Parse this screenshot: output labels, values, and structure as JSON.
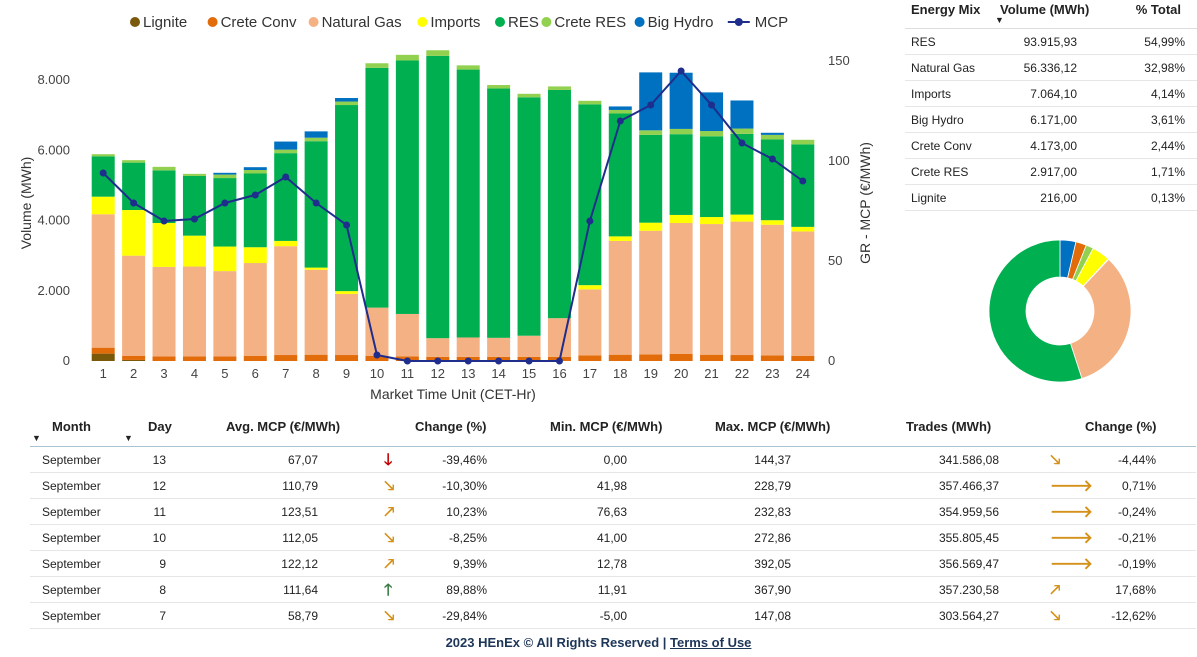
{
  "chart_data": {
    "type": "bar",
    "stacked": true,
    "categories": [
      "1",
      "2",
      "3",
      "4",
      "5",
      "6",
      "7",
      "8",
      "9",
      "10",
      "11",
      "12",
      "13",
      "14",
      "15",
      "16",
      "17",
      "18",
      "19",
      "20",
      "21",
      "22",
      "23",
      "24"
    ],
    "series": [
      {
        "name": "Lignite",
        "color": "#7a5a0a",
        "values": [
          210,
          30,
          0,
          0,
          0,
          0,
          0,
          0,
          0,
          0,
          0,
          0,
          0,
          0,
          0,
          0,
          0,
          0,
          0,
          0,
          0,
          0,
          0,
          0
        ]
      },
      {
        "name": "Crete Conv",
        "color": "#e36c0a",
        "values": [
          170,
          120,
          130,
          130,
          130,
          150,
          170,
          180,
          170,
          150,
          130,
          120,
          120,
          120,
          120,
          120,
          160,
          180,
          190,
          200,
          180,
          170,
          160,
          150
        ]
      },
      {
        "name": "Natural Gas",
        "color": "#f4b183",
        "values": [
          3800,
          2850,
          2550,
          2560,
          2430,
          2640,
          3100,
          2420,
          1740,
          1370,
          1210,
          530,
          550,
          540,
          600,
          1100,
          1880,
          3240,
          3520,
          3730,
          3720,
          3800,
          3720,
          3540
        ]
      },
      {
        "name": "Imports",
        "color": "#ffff00",
        "values": [
          500,
          1300,
          1250,
          880,
          700,
          450,
          150,
          60,
          80,
          0,
          0,
          0,
          0,
          0,
          0,
          0,
          120,
          130,
          230,
          230,
          200,
          200,
          130,
          130
        ]
      },
      {
        "name": "RES",
        "color": "#00b050",
        "values": [
          1150,
          1350,
          1500,
          1700,
          1950,
          2100,
          2500,
          3600,
          5300,
          6830,
          7220,
          8040,
          7630,
          7100,
          6790,
          6500,
          5150,
          3500,
          2500,
          2300,
          2300,
          2300,
          2300,
          2350
        ]
      },
      {
        "name": "Crete RES",
        "color": "#92d050",
        "values": [
          60,
          70,
          100,
          60,
          100,
          100,
          100,
          100,
          100,
          130,
          160,
          160,
          120,
          100,
          100,
          100,
          100,
          100,
          130,
          150,
          150,
          150,
          130,
          130
        ]
      },
      {
        "name": "Big Hydro",
        "color": "#0070c0",
        "values": [
          0,
          0,
          0,
          0,
          50,
          80,
          230,
          180,
          100,
          0,
          0,
          0,
          0,
          0,
          0,
          0,
          0,
          100,
          1650,
          1600,
          1100,
          800,
          60,
          0
        ]
      }
    ],
    "line_series": {
      "name": "MCP",
      "color": "#1f2d8c",
      "values": [
        94,
        79,
        70,
        71,
        79,
        83,
        92,
        79,
        68,
        3,
        0,
        0,
        0,
        0,
        0,
        0,
        70,
        120,
        128,
        145,
        128,
        109,
        101,
        90
      ]
    },
    "xlabel": "Market Time Unit (CET-Hr)",
    "ylabel": "Volume (MWh)",
    "y2label": "GR - MCP (€/MWh)",
    "ylim": [
      0,
      9000
    ],
    "y2lim": [
      0,
      158
    ],
    "yticks": [
      0,
      2000,
      4000,
      6000,
      8000
    ],
    "ytick_labels": [
      "0",
      "2.000",
      "4.000",
      "6.000",
      "8.000"
    ],
    "y2ticks": [
      0,
      50,
      100,
      150
    ],
    "legend_position": "top",
    "grid": false
  },
  "energy_mix": {
    "headers": {
      "source": "Energy Mix",
      "volume": "Volume (MWh)",
      "pct": "% Total"
    },
    "rows": [
      {
        "source": "RES",
        "volume": "93.915,93",
        "pct": "54,99%",
        "value": 54.99,
        "color": "#00b050"
      },
      {
        "source": "Natural Gas",
        "volume": "56.336,12",
        "pct": "32,98%",
        "value": 32.98,
        "color": "#f4b183"
      },
      {
        "source": "Imports",
        "volume": "7.064,10",
        "pct": "4,14%",
        "value": 4.14,
        "color": "#ffff00"
      },
      {
        "source": "Big Hydro",
        "volume": "6.171,00",
        "pct": "3,61%",
        "value": 3.61,
        "color": "#0070c0"
      },
      {
        "source": "Crete Conv",
        "volume": "4.173,00",
        "pct": "2,44%",
        "value": 2.44,
        "color": "#e36c0a"
      },
      {
        "source": "Crete RES",
        "volume": "2.917,00",
        "pct": "1,71%",
        "value": 1.71,
        "color": "#92d050"
      },
      {
        "source": "Lignite",
        "volume": "216,00",
        "pct": "0,13%",
        "value": 0.13,
        "color": "#7a5a0a"
      }
    ],
    "donut_order": [
      "Big Hydro",
      "Crete Conv",
      "Crete RES",
      "Imports",
      "Lignite",
      "Natural Gas",
      "RES"
    ]
  },
  "trades": {
    "headers": {
      "month": "Month",
      "day": "Day",
      "avg": "Avg. MCP (€/MWh)",
      "change": "Change (%)",
      "min": "Min. MCP (€/MWh)",
      "max": "Max. MCP (€/MWh)",
      "trades": "Trades (MWh)",
      "change2": "Change (%)"
    },
    "rows": [
      {
        "month": "September",
        "day": "13",
        "avg": "67,07",
        "change": "-39,46%",
        "change_icon": "arrow-down-icon",
        "min": "0,00",
        "max": "144,37",
        "trades": "341.586,08",
        "change2": "-4,44%",
        "change2_icon": "arrow-down-right-icon"
      },
      {
        "month": "September",
        "day": "12",
        "avg": "110,79",
        "change": "-10,30%",
        "change_icon": "arrow-down-right-icon",
        "min": "41,98",
        "max": "228,79",
        "trades": "357.466,37",
        "change2": "0,71%",
        "change2_icon": "arrow-right-icon"
      },
      {
        "month": "September",
        "day": "11",
        "avg": "123,51",
        "change": "10,23%",
        "change_icon": "arrow-up-right-icon",
        "min": "76,63",
        "max": "232,83",
        "trades": "354.959,56",
        "change2": "-0,24%",
        "change2_icon": "arrow-right-icon"
      },
      {
        "month": "September",
        "day": "10",
        "avg": "112,05",
        "change": "-8,25%",
        "change_icon": "arrow-down-right-icon",
        "min": "41,00",
        "max": "272,86",
        "trades": "355.805,45",
        "change2": "-0,21%",
        "change2_icon": "arrow-right-icon"
      },
      {
        "month": "September",
        "day": "9",
        "avg": "122,12",
        "change": "9,39%",
        "change_icon": "arrow-up-right-icon",
        "min": "12,78",
        "max": "392,05",
        "trades": "356.569,47",
        "change2": "-0,19%",
        "change2_icon": "arrow-right-icon"
      },
      {
        "month": "September",
        "day": "8",
        "avg": "111,64",
        "change": "89,88%",
        "change_icon": "arrow-up-icon",
        "min": "11,91",
        "max": "367,90",
        "trades": "357.230,58",
        "change2": "17,68%",
        "change2_icon": "arrow-up-right-icon"
      },
      {
        "month": "September",
        "day": "7",
        "avg": "58,79",
        "change": "-29,84%",
        "change_icon": "arrow-down-right-icon",
        "min": "-5,00",
        "max": "147,08",
        "trades": "303.564,27",
        "change2": "-12,62%",
        "change2_icon": "arrow-down-right-icon"
      }
    ]
  },
  "icons": {
    "arrow-down-icon": {
      "glyph": "🡓",
      "color": "#c00000"
    },
    "arrow-up-icon": {
      "glyph": "🡑",
      "color": "#3a7d44"
    },
    "arrow-down-right-icon": {
      "glyph": "🡖",
      "color": "#d4911a"
    },
    "arrow-up-right-icon": {
      "glyph": "🡕",
      "color": "#d4911a"
    },
    "arrow-right-icon": {
      "glyph": "🡒",
      "color": "#d4911a"
    }
  },
  "footer": {
    "text": "2023 HEnEx © All Rights Reserved | ",
    "link": "Terms of Use"
  }
}
